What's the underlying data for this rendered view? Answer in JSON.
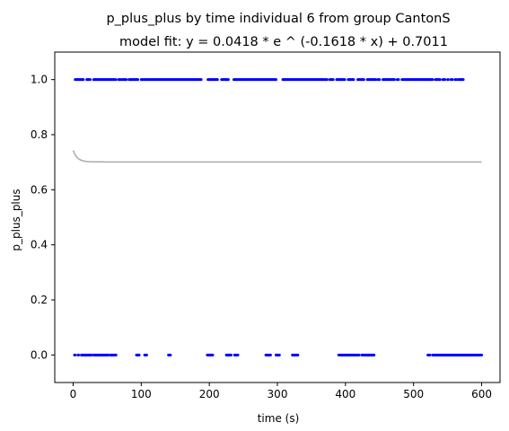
{
  "chart_data": {
    "type": "scatter",
    "title": "p_plus_plus by time individual 6 from group CantonS",
    "subtitle": "model fit: y = 0.0418 * e ^ (-0.1618 * x) + 0.7011",
    "xlabel": "time (s)",
    "ylabel": "p_plus_plus",
    "xlim": [
      -27,
      627
    ],
    "ylim": [
      -0.1,
      1.1
    ],
    "xticks": [
      0,
      100,
      200,
      300,
      400,
      500,
      600
    ],
    "yticks": [
      0.0,
      0.2,
      0.4,
      0.6,
      0.8,
      1.0
    ],
    "xtick_labels": [
      "0",
      "100",
      "200",
      "300",
      "400",
      "500",
      "600"
    ],
    "ytick_labels": [
      "0.0",
      "0.2",
      "0.4",
      "0.6",
      "0.8",
      "1.0"
    ],
    "grid": false,
    "point_color": "#0000ff",
    "fit_color": "#aaaaaa",
    "series": [
      {
        "name": "",
        "value": 1.0,
        "x_ranges": [
          [
            3,
            15
          ],
          [
            20,
            25
          ],
          [
            30,
            60
          ],
          [
            62,
            63
          ],
          [
            67,
            70
          ],
          [
            72,
            78
          ],
          [
            82,
            95
          ],
          [
            100,
            103
          ],
          [
            105,
            188
          ],
          [
            198,
            212
          ],
          [
            218,
            228
          ],
          [
            236,
            298
          ],
          [
            308,
            368
          ],
          [
            370,
            373
          ],
          [
            377,
            382
          ],
          [
            387,
            399
          ],
          [
            404,
            412
          ],
          [
            418,
            427
          ],
          [
            432,
            445
          ],
          [
            448,
            450
          ],
          [
            455,
            472
          ],
          [
            476,
            478
          ],
          [
            483,
            528
          ],
          [
            532,
            539
          ],
          [
            543,
            546
          ],
          [
            550,
            551
          ],
          [
            555,
            557
          ],
          [
            561,
            563
          ],
          [
            566,
            573
          ]
        ]
      },
      {
        "name": "",
        "value": 0.0,
        "x_ranges": [
          [
            2,
            3
          ],
          [
            7,
            8
          ],
          [
            12,
            27
          ],
          [
            30,
            52
          ],
          [
            55,
            63
          ],
          [
            93,
            97
          ],
          [
            105,
            108
          ],
          [
            140,
            143
          ],
          [
            197,
            205
          ],
          [
            225,
            232
          ],
          [
            237,
            242
          ],
          [
            283,
            290
          ],
          [
            298,
            303
          ],
          [
            322,
            330
          ],
          [
            390,
            420
          ],
          [
            424,
            442
          ],
          [
            521,
            524
          ],
          [
            528,
            600
          ]
        ]
      }
    ],
    "fit": {
      "a": 0.0418,
      "b": -0.1618,
      "c": 0.7011,
      "x_range": [
        0,
        600
      ]
    }
  }
}
